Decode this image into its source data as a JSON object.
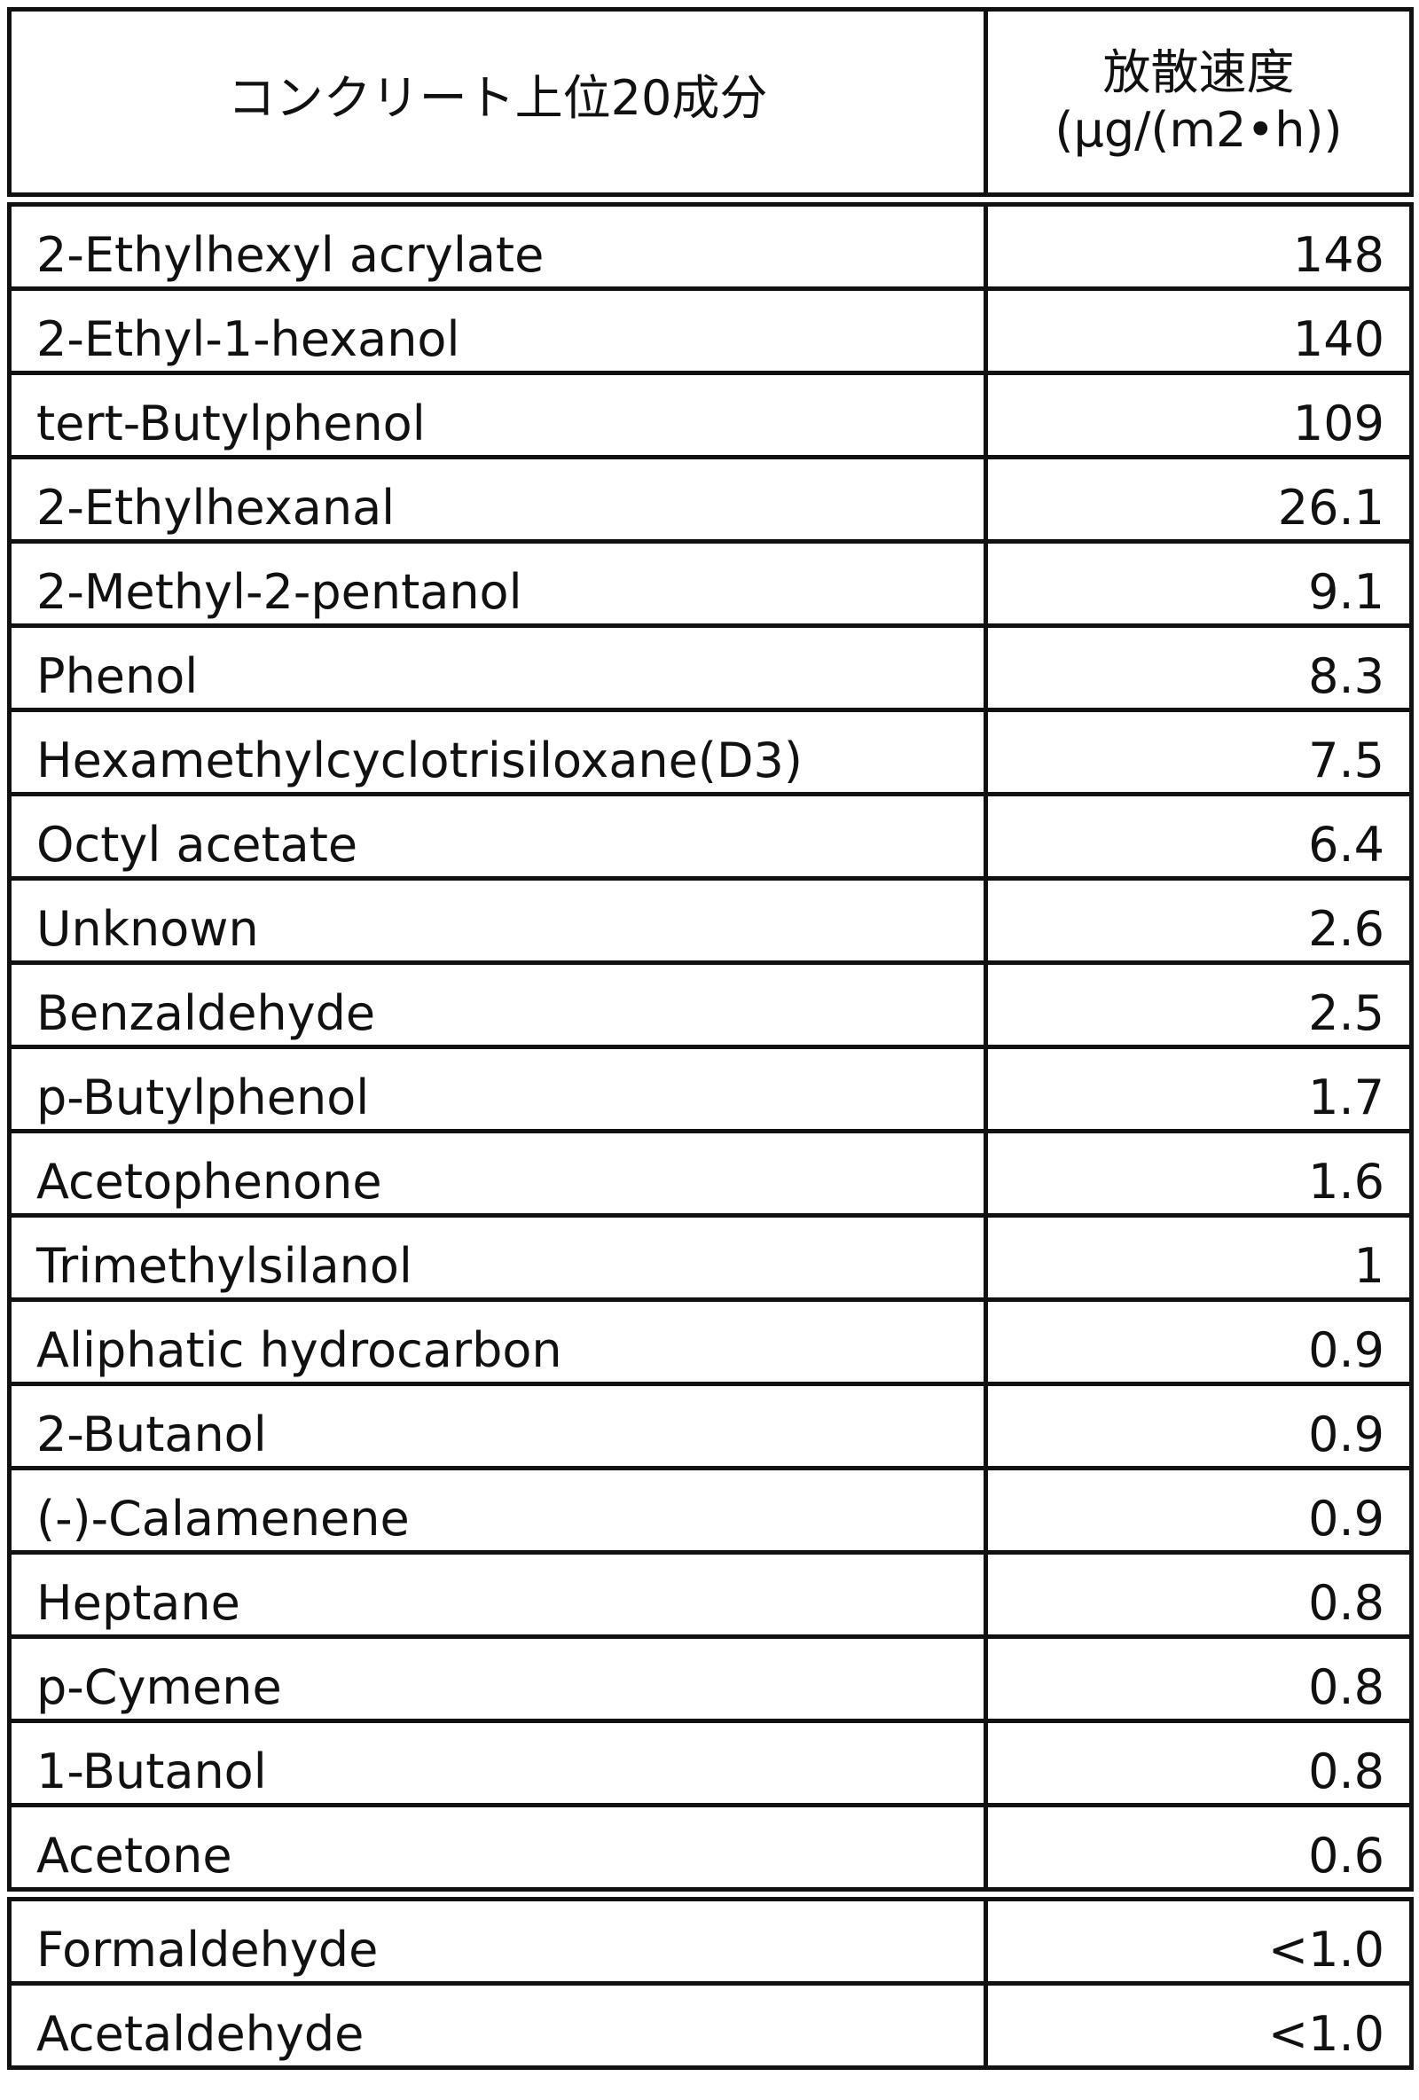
{
  "table": {
    "header": {
      "component": "コンクリート上位20成分",
      "rate": [
        "放散速度",
        "(μg/(m2•h))"
      ]
    },
    "rows": [
      [
        "2-Ethylhexyl acrylate",
        "148"
      ],
      [
        "2-Ethyl-1-hexanol",
        "140"
      ],
      [
        "tert-Butylphenol",
        "109"
      ],
      [
        "2-Ethylhexanal",
        "26.1"
      ],
      [
        "2-Methyl-2-pentanol",
        "9.1"
      ],
      [
        "Phenol",
        "8.3"
      ],
      [
        "Hexamethylcyclotrisiloxane(D3)",
        "7.5"
      ],
      [
        "Octyl acetate",
        "6.4"
      ],
      [
        "Unknown",
        "2.6"
      ],
      [
        "Benzaldehyde",
        "2.5"
      ],
      [
        "p-Butylphenol",
        "1.7"
      ],
      [
        "Acetophenone",
        "1.6"
      ],
      [
        "Trimethylsilanol",
        "1"
      ],
      [
        "Aliphatic hydrocarbon",
        "0.9"
      ],
      [
        "2-Butanol",
        "0.9"
      ],
      [
        "(-)-Calamenene",
        "0.9"
      ],
      [
        "Heptane",
        "0.8"
      ],
      [
        "p-Cymene",
        "0.8"
      ],
      [
        "1-Butanol",
        "0.8"
      ],
      [
        "Acetone",
        "0.6"
      ]
    ],
    "aldehyde_rows": [
      [
        "Formaldehyde",
        "<1.0"
      ],
      [
        "Acetaldehyde",
        "<1.0"
      ]
    ]
  }
}
